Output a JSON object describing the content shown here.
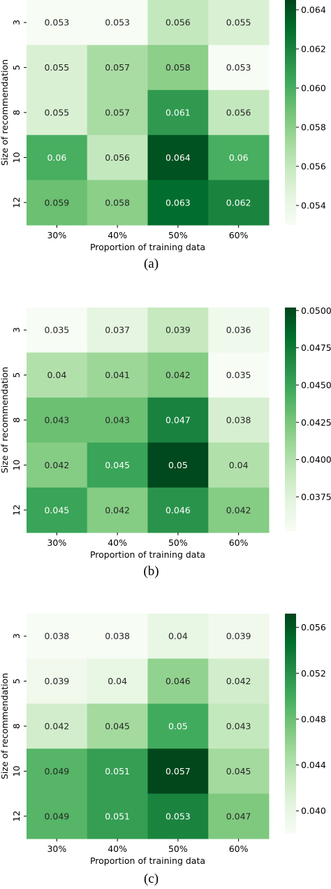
{
  "chart_data": [
    {
      "type": "heatmap",
      "caption": "(a)",
      "xlabel": "Proportion of training data",
      "ylabel": "Size of recommendation",
      "x_categories": [
        "30%",
        "40%",
        "50%",
        "60%"
      ],
      "y_categories": [
        "3",
        "5",
        "8",
        "10",
        "12"
      ],
      "values": [
        [
          0.053,
          0.053,
          0.056,
          0.055
        ],
        [
          0.055,
          0.057,
          0.058,
          0.053
        ],
        [
          0.055,
          0.057,
          0.061,
          0.056
        ],
        [
          0.06,
          0.056,
          0.064,
          0.06
        ],
        [
          0.059,
          0.058,
          0.063,
          0.062
        ]
      ],
      "cell_labels": [
        [
          "0.053",
          "0.053",
          "0.056",
          "0.055"
        ],
        [
          "0.055",
          "0.057",
          "0.058",
          "0.053"
        ],
        [
          "0.055",
          "0.057",
          "0.061",
          "0.056"
        ],
        [
          "0.06",
          "0.056",
          "0.064",
          "0.06"
        ],
        [
          "0.059",
          "0.058",
          "0.063",
          "0.062"
        ]
      ],
      "colorbar": {
        "min": 0.053,
        "max": 0.0645,
        "ticks": [
          "0.054",
          "0.056",
          "0.058",
          "0.060",
          "0.062",
          "0.064"
        ],
        "tick_values": [
          0.054,
          0.056,
          0.058,
          0.06,
          0.062,
          0.064
        ]
      },
      "colormap": "Greens"
    },
    {
      "type": "heatmap",
      "caption": "(b)",
      "xlabel": "Proportion of training data",
      "ylabel": "Size of recommendation",
      "x_categories": [
        "30%",
        "40%",
        "50%",
        "60%"
      ],
      "y_categories": [
        "3",
        "5",
        "8",
        "10",
        "12"
      ],
      "values": [
        [
          0.035,
          0.037,
          0.039,
          0.036
        ],
        [
          0.04,
          0.041,
          0.042,
          0.035
        ],
        [
          0.043,
          0.043,
          0.047,
          0.038
        ],
        [
          0.042,
          0.045,
          0.05,
          0.04
        ],
        [
          0.045,
          0.042,
          0.046,
          0.042
        ]
      ],
      "cell_labels": [
        [
          "0.035",
          "0.037",
          "0.039",
          "0.036"
        ],
        [
          "0.04",
          "0.041",
          "0.042",
          "0.035"
        ],
        [
          "0.043",
          "0.043",
          "0.047",
          "0.038"
        ],
        [
          "0.042",
          "0.045",
          "0.05",
          "0.04"
        ],
        [
          "0.045",
          "0.042",
          "0.046",
          "0.042"
        ]
      ],
      "colorbar": {
        "min": 0.0352,
        "max": 0.0502,
        "ticks": [
          "0.03750",
          "0.04000",
          "0.04250",
          "0.04500",
          "0.04750",
          "0.05000"
        ],
        "tick_values": [
          0.0375,
          0.04,
          0.0425,
          0.045,
          0.0475,
          0.05
        ]
      },
      "colormap": "Greens"
    },
    {
      "type": "heatmap",
      "caption": "(c)",
      "xlabel": "Proportion of training data",
      "ylabel": "Size of recommendation",
      "x_categories": [
        "30%",
        "40%",
        "50%",
        "60%"
      ],
      "y_categories": [
        "3",
        "5",
        "8",
        "10",
        "12"
      ],
      "values": [
        [
          0.038,
          0.038,
          0.04,
          0.039
        ],
        [
          0.039,
          0.04,
          0.046,
          0.042
        ],
        [
          0.042,
          0.045,
          0.05,
          0.043
        ],
        [
          0.049,
          0.051,
          0.057,
          0.045
        ],
        [
          0.049,
          0.051,
          0.053,
          0.047
        ]
      ],
      "cell_labels": [
        [
          "0.038",
          "0.038",
          "0.04",
          "0.039"
        ],
        [
          "0.039",
          "0.04",
          "0.046",
          "0.042"
        ],
        [
          "0.042",
          "0.045",
          "0.05",
          "0.043"
        ],
        [
          "0.049",
          "0.051",
          "0.057",
          "0.045"
        ],
        [
          "0.049",
          "0.051",
          "0.053",
          "0.047"
        ]
      ],
      "colorbar": {
        "min": 0.038,
        "max": 0.0572,
        "ticks": [
          "0.040",
          "0.044",
          "0.048",
          "0.052",
          "0.056"
        ],
        "tick_values": [
          0.04,
          0.044,
          0.048,
          0.052,
          0.056
        ]
      },
      "colormap": "Greens"
    }
  ]
}
